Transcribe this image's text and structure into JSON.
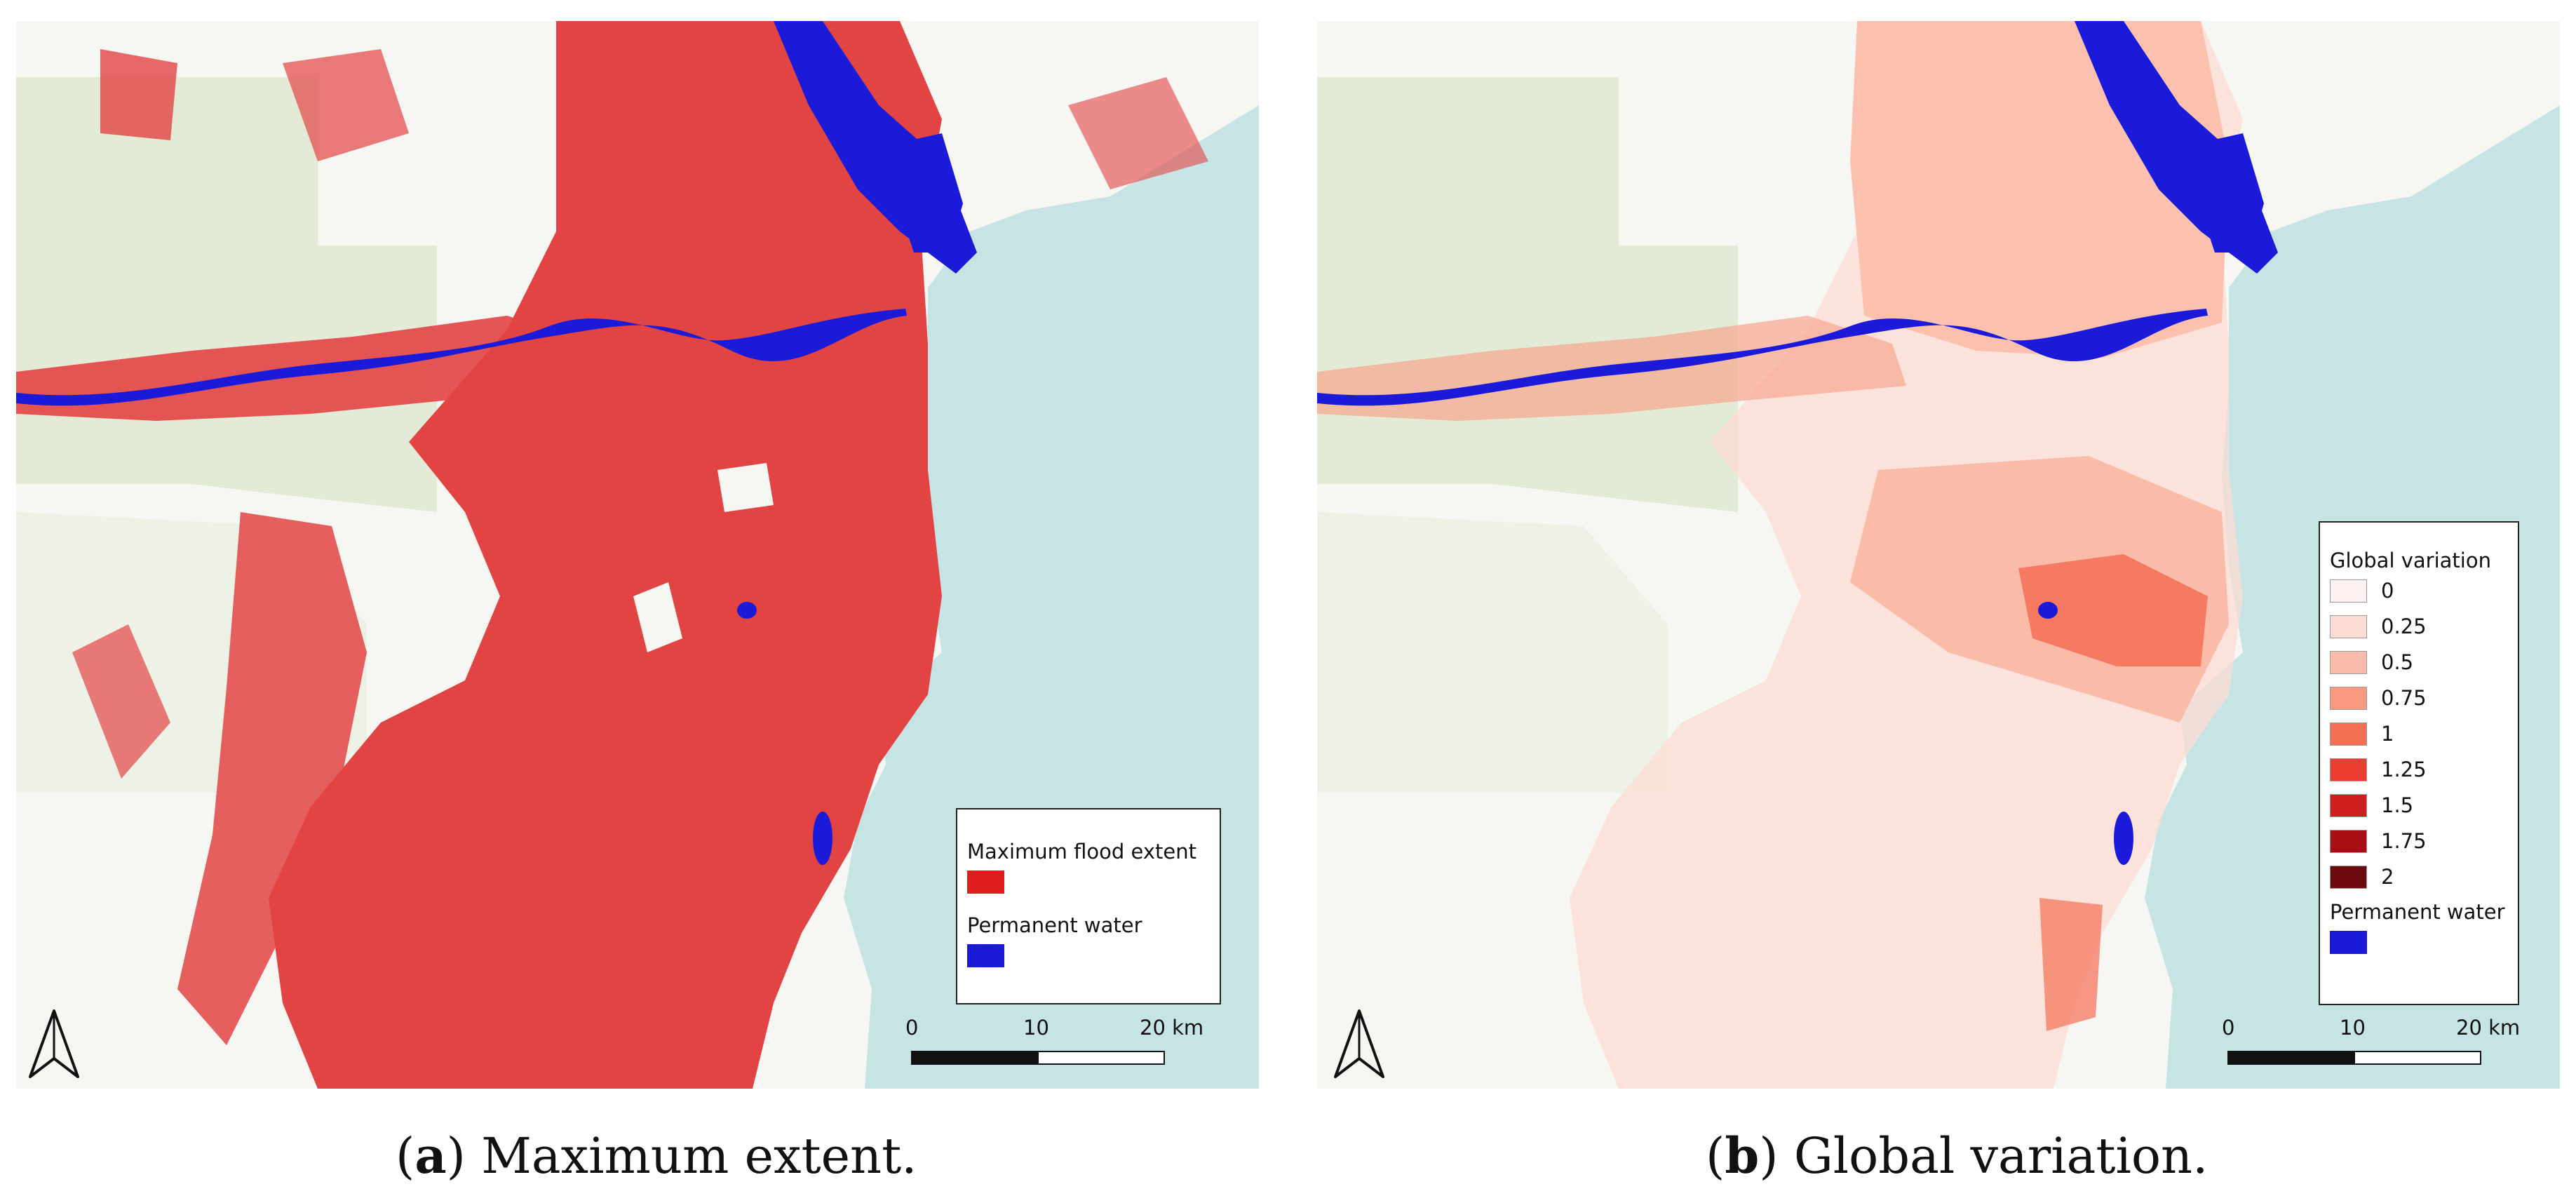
{
  "colors": {
    "flood": "#e24444",
    "permanent_water": "#1a1ad8",
    "sea": "#c7e4e4",
    "land": "#f6f6f2",
    "park": "#e3ead6"
  },
  "panel_a": {
    "caption_letter": "a",
    "caption_text": "Maximum extent.",
    "legend": [
      {
        "label": "Maximum flood extent",
        "color": "#e01e1e"
      },
      {
        "label": "Permanent water",
        "color": "#1a1ad8"
      }
    ]
  },
  "panel_b": {
    "caption_letter": "b",
    "caption_text": "Global variation.",
    "legend_title": "Global variation",
    "legend_classes": [
      {
        "label": "0",
        "color": "#fdf1ef"
      },
      {
        "label": "0.25",
        "color": "#fcdcd3"
      },
      {
        "label": "0.5",
        "color": "#fbbba9"
      },
      {
        "label": "0.75",
        "color": "#f99a80"
      },
      {
        "label": "1",
        "color": "#f56f55"
      },
      {
        "label": "1.25",
        "color": "#ea3f32"
      },
      {
        "label": "1.5",
        "color": "#cf1f1f"
      },
      {
        "label": "1.75",
        "color": "#a80f15"
      },
      {
        "label": "2",
        "color": "#6d0a10"
      }
    ],
    "permanent_water_label": "Permanent water"
  },
  "scalebar": {
    "ticks": [
      "0",
      "10",
      "20 km"
    ]
  },
  "north_arrow": "north-arrow-icon"
}
